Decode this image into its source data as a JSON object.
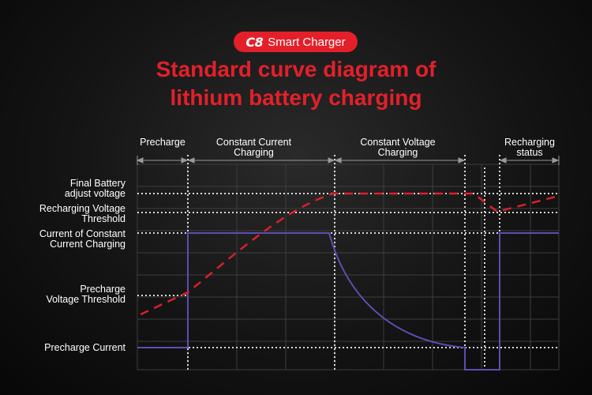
{
  "header": {
    "badge_logo": "C8",
    "badge_text": "Smart Charger",
    "title_line1": "Standard curve diagram of",
    "title_line2": "lithium battery charging"
  },
  "phases": [
    {
      "label_line1": "Precharge",
      "label_line2": ""
    },
    {
      "label_line1": "Constant Current",
      "label_line2": "Charging"
    },
    {
      "label_line1": "Constant Voltage",
      "label_line2": "Charging"
    },
    {
      "label_line1": "Recharging",
      "label_line2": "status"
    }
  ],
  "y_labels": [
    {
      "line1": "Final Battery",
      "line2": "adjust voltage"
    },
    {
      "line1": "Recharging Voltage",
      "line2": "Threshold"
    },
    {
      "line1": "Current of Constant",
      "line2": "Current Charging"
    },
    {
      "line1": "Precharge",
      "line2": "Voltage Threshold"
    },
    {
      "line1": "Precharge Current",
      "line2": ""
    }
  ],
  "colors": {
    "accent": "#e3202a",
    "current_curve": "#5b4fb0",
    "voltage_curve": "#d8212b",
    "grid": "#3d3d3d",
    "dotted": "#d8d8d8"
  }
}
